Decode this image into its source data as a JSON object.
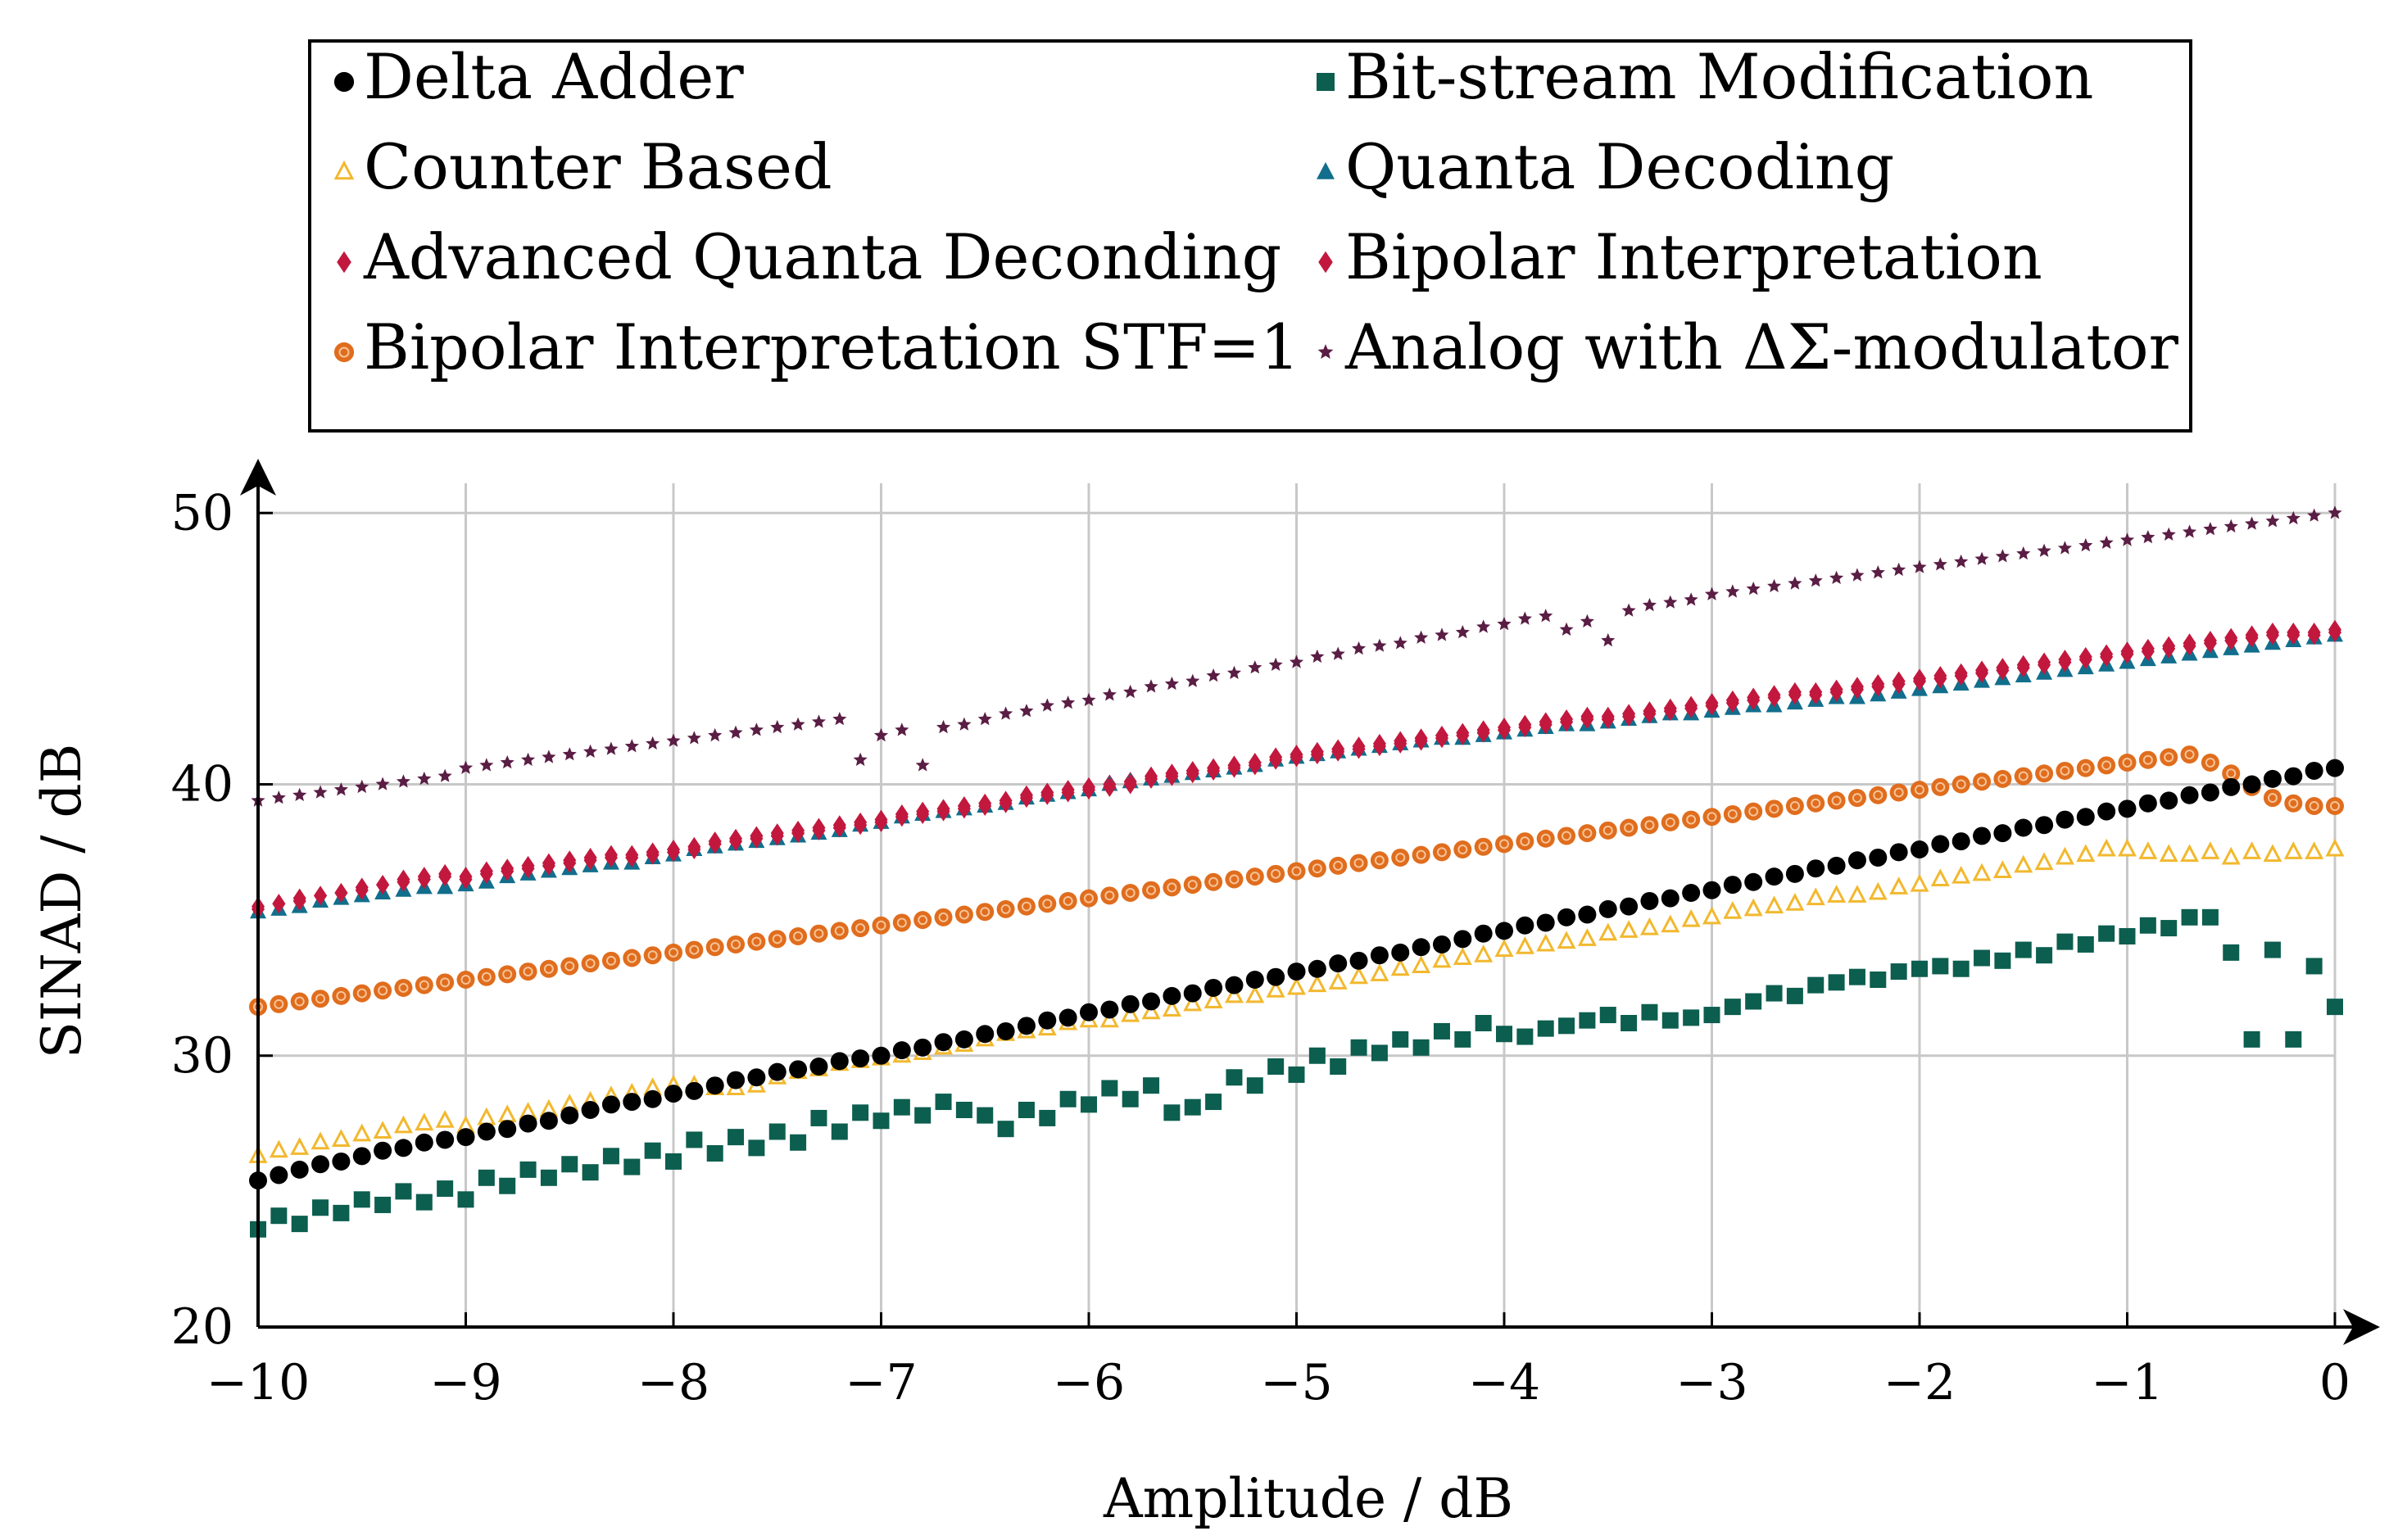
{
  "chart_data": {
    "type": "scatter",
    "xlabel": "Amplitude / dB",
    "ylabel": "SINAD / dB",
    "xlim": [
      -10,
      0
    ],
    "ylim": [
      20,
      52
    ],
    "x_ticks": [
      "−10",
      "−9",
      "−8",
      "−7",
      "−6",
      "−5",
      "−4",
      "−3",
      "−2",
      "−1",
      "0"
    ],
    "y_ticks": [
      "20",
      "30",
      "40",
      "50"
    ],
    "grid": true,
    "legend_placement": "top",
    "x": [
      -10.0,
      -9.9,
      -9.8,
      -9.7,
      -9.6,
      -9.5,
      -9.4,
      -9.3,
      -9.2,
      -9.1,
      -9.0,
      -8.9,
      -8.8,
      -8.7,
      -8.6,
      -8.5,
      -8.4,
      -8.3,
      -8.2,
      -8.1,
      -8.0,
      -7.9,
      -7.8,
      -7.7,
      -7.6,
      -7.5,
      -7.4,
      -7.3,
      -7.2,
      -7.1,
      -7.0,
      -6.9,
      -6.8,
      -6.7,
      -6.6,
      -6.5,
      -6.4,
      -6.3,
      -6.2,
      -6.1,
      -6.0,
      -5.9,
      -5.8,
      -5.7,
      -5.6,
      -5.5,
      -5.4,
      -5.3,
      -5.2,
      -5.1,
      -5.0,
      -4.9,
      -4.8,
      -4.7,
      -4.6,
      -4.5,
      -4.4,
      -4.3,
      -4.2,
      -4.1,
      -4.0,
      -3.9,
      -3.8,
      -3.7,
      -3.6,
      -3.5,
      -3.4,
      -3.3,
      -3.2,
      -3.1,
      -3.0,
      -2.9,
      -2.8,
      -2.7,
      -2.6,
      -2.5,
      -2.4,
      -2.3,
      -2.2,
      -2.1,
      -2.0,
      -1.9,
      -1.8,
      -1.7,
      -1.6,
      -1.5,
      -1.4,
      -1.3,
      -1.2,
      -1.1,
      -1.0,
      -0.9,
      -0.8,
      -0.7,
      -0.6,
      -0.5,
      -0.4,
      -0.3,
      -0.2,
      -0.1,
      0.0
    ],
    "series": [
      {
        "name": "Delta Adder",
        "marker": "circle",
        "color": "#000000",
        "values": [
          25.4,
          25.6,
          25.8,
          26.0,
          26.1,
          26.3,
          26.5,
          26.6,
          26.8,
          26.9,
          27.0,
          27.2,
          27.3,
          27.5,
          27.6,
          27.8,
          28.0,
          28.2,
          28.3,
          28.4,
          28.6,
          28.7,
          28.9,
          29.1,
          29.2,
          29.4,
          29.5,
          29.6,
          29.8,
          29.9,
          30.0,
          30.2,
          30.3,
          30.5,
          30.6,
          30.8,
          30.9,
          31.1,
          31.3,
          31.4,
          31.6,
          31.7,
          31.9,
          32.0,
          32.2,
          32.3,
          32.5,
          32.6,
          32.8,
          32.9,
          33.1,
          33.2,
          33.4,
          33.5,
          33.7,
          33.8,
          34.0,
          34.1,
          34.3,
          34.5,
          34.6,
          34.8,
          34.9,
          35.1,
          35.2,
          35.4,
          35.5,
          35.7,
          35.8,
          36.0,
          36.1,
          36.3,
          36.4,
          36.6,
          36.7,
          36.9,
          37.0,
          37.2,
          37.3,
          37.5,
          37.6,
          37.8,
          37.9,
          38.1,
          38.2,
          38.4,
          38.5,
          38.7,
          38.8,
          39.0,
          39.1,
          39.3,
          39.4,
          39.6,
          39.7,
          39.9,
          40.0,
          40.2,
          40.3,
          40.5,
          40.6
        ]
      },
      {
        "name": "Bit-stream Modification",
        "marker": "square",
        "color": "#0c5e4f",
        "values": [
          23.6,
          24.1,
          23.8,
          24.4,
          24.2,
          24.7,
          24.5,
          25.0,
          24.6,
          25.1,
          24.7,
          25.5,
          25.2,
          25.8,
          25.5,
          26.0,
          25.7,
          26.3,
          25.9,
          26.5,
          26.1,
          26.9,
          26.4,
          27.0,
          26.6,
          27.2,
          26.8,
          27.7,
          27.2,
          27.9,
          27.6,
          28.1,
          27.8,
          28.3,
          28.0,
          27.8,
          27.3,
          28.0,
          27.7,
          28.4,
          28.2,
          28.8,
          28.4,
          28.9,
          27.9,
          28.1,
          28.3,
          29.2,
          28.9,
          29.6,
          29.3,
          30.0,
          29.6,
          30.3,
          30.1,
          30.6,
          30.3,
          30.9,
          30.6,
          31.2,
          30.8,
          30.7,
          31.0,
          31.1,
          31.3,
          31.5,
          31.2,
          31.6,
          31.3,
          31.4,
          31.5,
          31.8,
          32.0,
          32.3,
          32.2,
          32.6,
          32.7,
          32.9,
          32.8,
          33.1,
          33.2,
          33.3,
          33.2,
          33.6,
          33.5,
          33.9,
          33.7,
          34.2,
          34.1,
          34.5,
          34.4,
          34.8,
          34.7,
          35.1,
          35.1,
          33.8,
          30.6,
          33.9,
          30.6,
          33.3,
          31.8
        ]
      },
      {
        "name": "Counter Based",
        "marker": "triangle-open",
        "color": "#f2b82e",
        "values": [
          26.3,
          26.5,
          26.6,
          26.8,
          26.9,
          27.1,
          27.2,
          27.4,
          27.5,
          27.6,
          27.4,
          27.7,
          27.8,
          27.9,
          28.0,
          28.2,
          28.3,
          28.5,
          28.6,
          28.8,
          28.9,
          28.9,
          28.8,
          28.8,
          28.9,
          29.2,
          29.4,
          29.5,
          29.7,
          29.8,
          29.9,
          30.0,
          30.1,
          30.3,
          30.4,
          30.6,
          30.8,
          30.9,
          31.0,
          31.2,
          31.3,
          31.3,
          31.5,
          31.6,
          31.7,
          31.9,
          32.0,
          32.2,
          32.2,
          32.4,
          32.5,
          32.6,
          32.7,
          32.9,
          33.0,
          33.2,
          33.3,
          33.5,
          33.6,
          33.7,
          33.9,
          34.0,
          34.1,
          34.2,
          34.3,
          34.5,
          34.6,
          34.7,
          34.8,
          35.0,
          35.1,
          35.3,
          35.4,
          35.5,
          35.6,
          35.8,
          35.9,
          35.9,
          36.0,
          36.2,
          36.3,
          36.5,
          36.6,
          36.7,
          36.8,
          37.0,
          37.1,
          37.3,
          37.4,
          37.6,
          37.6,
          37.5,
          37.4,
          37.4,
          37.5,
          37.3,
          37.5,
          37.4,
          37.5,
          37.5,
          37.6
        ]
      },
      {
        "name": "Quanta Decoding",
        "marker": "triangle",
        "color": "#116e8c",
        "values": [
          35.3,
          35.4,
          35.5,
          35.7,
          35.8,
          35.9,
          36.0,
          36.1,
          36.2,
          36.2,
          36.3,
          36.4,
          36.6,
          36.7,
          36.8,
          36.9,
          37.0,
          37.1,
          37.1,
          37.3,
          37.4,
          37.6,
          37.7,
          37.8,
          37.9,
          38.0,
          38.1,
          38.2,
          38.3,
          38.5,
          38.6,
          38.8,
          38.9,
          39.0,
          39.1,
          39.2,
          39.3,
          39.5,
          39.6,
          39.7,
          39.8,
          40.0,
          40.1,
          40.2,
          40.3,
          40.4,
          40.5,
          40.6,
          40.7,
          40.9,
          41.0,
          41.1,
          41.2,
          41.3,
          41.4,
          41.5,
          41.6,
          41.7,
          41.7,
          41.8,
          41.9,
          42.0,
          42.1,
          42.2,
          42.2,
          42.3,
          42.4,
          42.5,
          42.6,
          42.6,
          42.7,
          42.8,
          42.9,
          42.9,
          43.0,
          43.1,
          43.2,
          43.2,
          43.3,
          43.4,
          43.5,
          43.6,
          43.7,
          43.8,
          43.9,
          44.0,
          44.1,
          44.2,
          44.3,
          44.4,
          44.5,
          44.6,
          44.7,
          44.8,
          44.9,
          45.0,
          45.1,
          45.2,
          45.3,
          45.4,
          45.5
        ]
      },
      {
        "name": "Advanced Quanta Deconding",
        "marker": "diamond",
        "color": "#c2183e",
        "values": [
          35.5,
          35.6,
          35.8,
          35.9,
          36.0,
          36.2,
          36.3,
          36.5,
          36.6,
          36.7,
          36.6,
          36.8,
          36.9,
          37.0,
          37.1,
          37.2,
          37.3,
          37.4,
          37.4,
          37.5,
          37.6,
          37.7,
          37.9,
          38.0,
          38.1,
          38.2,
          38.3,
          38.4,
          38.5,
          38.6,
          38.7,
          38.9,
          39.0,
          39.1,
          39.2,
          39.3,
          39.4,
          39.6,
          39.7,
          39.8,
          39.9,
          40.0,
          40.1,
          40.3,
          40.4,
          40.5,
          40.6,
          40.7,
          40.8,
          41.0,
          41.1,
          41.2,
          41.3,
          41.4,
          41.5,
          41.6,
          41.7,
          41.8,
          41.9,
          42.0,
          42.1,
          42.2,
          42.3,
          42.4,
          42.5,
          42.5,
          42.6,
          42.7,
          42.8,
          42.9,
          43.0,
          43.1,
          43.2,
          43.3,
          43.4,
          43.4,
          43.5,
          43.6,
          43.7,
          43.8,
          43.9,
          44.0,
          44.1,
          44.2,
          44.3,
          44.4,
          44.5,
          44.6,
          44.7,
          44.8,
          44.9,
          45.0,
          45.1,
          45.2,
          45.3,
          45.4,
          45.5,
          45.6,
          45.6,
          45.6,
          45.7
        ]
      },
      {
        "name": "Bipolar Interpretation",
        "marker": "diamond",
        "color": "#c2183e",
        "values": [
          35.4,
          35.6,
          35.7,
          35.9,
          36.0,
          36.1,
          36.3,
          36.4,
          36.5,
          36.6,
          36.5,
          36.7,
          36.8,
          36.9,
          37.0,
          37.1,
          37.2,
          37.3,
          37.3,
          37.4,
          37.5,
          37.6,
          37.8,
          37.9,
          38.0,
          38.1,
          38.2,
          38.3,
          38.4,
          38.5,
          38.6,
          38.8,
          38.9,
          39.0,
          39.1,
          39.2,
          39.3,
          39.5,
          39.6,
          39.7,
          39.8,
          39.9,
          40.0,
          40.2,
          40.3,
          40.4,
          40.5,
          40.6,
          40.7,
          40.9,
          41.0,
          41.1,
          41.2,
          41.3,
          41.4,
          41.5,
          41.6,
          41.7,
          41.8,
          41.9,
          42.0,
          42.1,
          42.2,
          42.3,
          42.4,
          42.4,
          42.5,
          42.6,
          42.7,
          42.8,
          42.9,
          43.0,
          43.1,
          43.2,
          43.3,
          43.3,
          43.4,
          43.5,
          43.6,
          43.7,
          43.8,
          43.9,
          44.0,
          44.1,
          44.2,
          44.3,
          44.4,
          44.5,
          44.6,
          44.7,
          44.8,
          44.9,
          45.0,
          45.1,
          45.2,
          45.3,
          45.4,
          45.5,
          45.5,
          45.5,
          45.6
        ]
      },
      {
        "name": "Bipolar Interpretation STF=1",
        "marker": "circle-dotted",
        "color": "#e06d1d",
        "values": [
          31.8,
          31.9,
          32.0,
          32.1,
          32.2,
          32.3,
          32.4,
          32.5,
          32.6,
          32.7,
          32.8,
          32.9,
          33.0,
          33.1,
          33.2,
          33.3,
          33.4,
          33.5,
          33.6,
          33.7,
          33.8,
          33.9,
          34.0,
          34.1,
          34.2,
          34.3,
          34.4,
          34.5,
          34.6,
          34.7,
          34.8,
          34.9,
          35.0,
          35.1,
          35.2,
          35.3,
          35.4,
          35.5,
          35.6,
          35.7,
          35.8,
          35.9,
          36.0,
          36.1,
          36.2,
          36.3,
          36.4,
          36.5,
          36.6,
          36.7,
          36.8,
          36.9,
          37.0,
          37.1,
          37.2,
          37.3,
          37.4,
          37.5,
          37.6,
          37.7,
          37.8,
          37.9,
          38.0,
          38.1,
          38.2,
          38.3,
          38.4,
          38.5,
          38.6,
          38.7,
          38.8,
          38.9,
          39.0,
          39.1,
          39.2,
          39.3,
          39.4,
          39.5,
          39.6,
          39.7,
          39.8,
          39.9,
          40.0,
          40.1,
          40.2,
          40.3,
          40.4,
          40.5,
          40.6,
          40.7,
          40.8,
          40.9,
          41.0,
          41.1,
          40.8,
          40.4,
          39.9,
          39.5,
          39.3,
          39.2,
          39.2
        ]
      },
      {
        "name": "Analog with ΔΣ-modulator",
        "marker": "star",
        "color": "#5a1d44",
        "values": [
          39.4,
          39.5,
          39.6,
          39.7,
          39.8,
          39.9,
          40.0,
          40.1,
          40.2,
          40.3,
          40.6,
          40.7,
          40.8,
          40.9,
          41.0,
          41.1,
          41.2,
          41.3,
          41.4,
          41.5,
          41.6,
          41.7,
          41.8,
          41.9,
          42.0,
          42.1,
          42.2,
          42.3,
          42.4,
          40.9,
          41.8,
          42.0,
          40.7,
          42.1,
          42.2,
          42.4,
          42.6,
          42.7,
          42.9,
          43.0,
          43.1,
          43.3,
          43.4,
          43.6,
          43.7,
          43.8,
          44.0,
          44.1,
          44.3,
          44.4,
          44.5,
          44.7,
          44.8,
          45.0,
          45.1,
          45.2,
          45.4,
          45.5,
          45.6,
          45.8,
          45.9,
          46.1,
          46.2,
          45.7,
          46.0,
          45.3,
          46.4,
          46.6,
          46.7,
          46.8,
          47.0,
          47.1,
          47.2,
          47.3,
          47.4,
          47.5,
          47.6,
          47.7,
          47.8,
          47.9,
          48.0,
          48.1,
          48.2,
          48.3,
          48.4,
          48.5,
          48.6,
          48.7,
          48.8,
          48.9,
          49.0,
          49.1,
          49.2,
          49.3,
          49.4,
          49.5,
          49.6,
          49.7,
          49.8,
          49.9,
          50.0
        ]
      }
    ]
  },
  "legend": {
    "items": [
      {
        "label": "Delta Adder"
      },
      {
        "label": "Bit-stream Modification"
      },
      {
        "label": "Counter Based"
      },
      {
        "label": "Quanta Decoding"
      },
      {
        "label": "Advanced Quanta Deconding"
      },
      {
        "label": "Bipolar Interpretation"
      },
      {
        "label": "Bipolar Interpretation STF=1"
      },
      {
        "label": "Analog with ΔΣ-modulator"
      }
    ]
  }
}
